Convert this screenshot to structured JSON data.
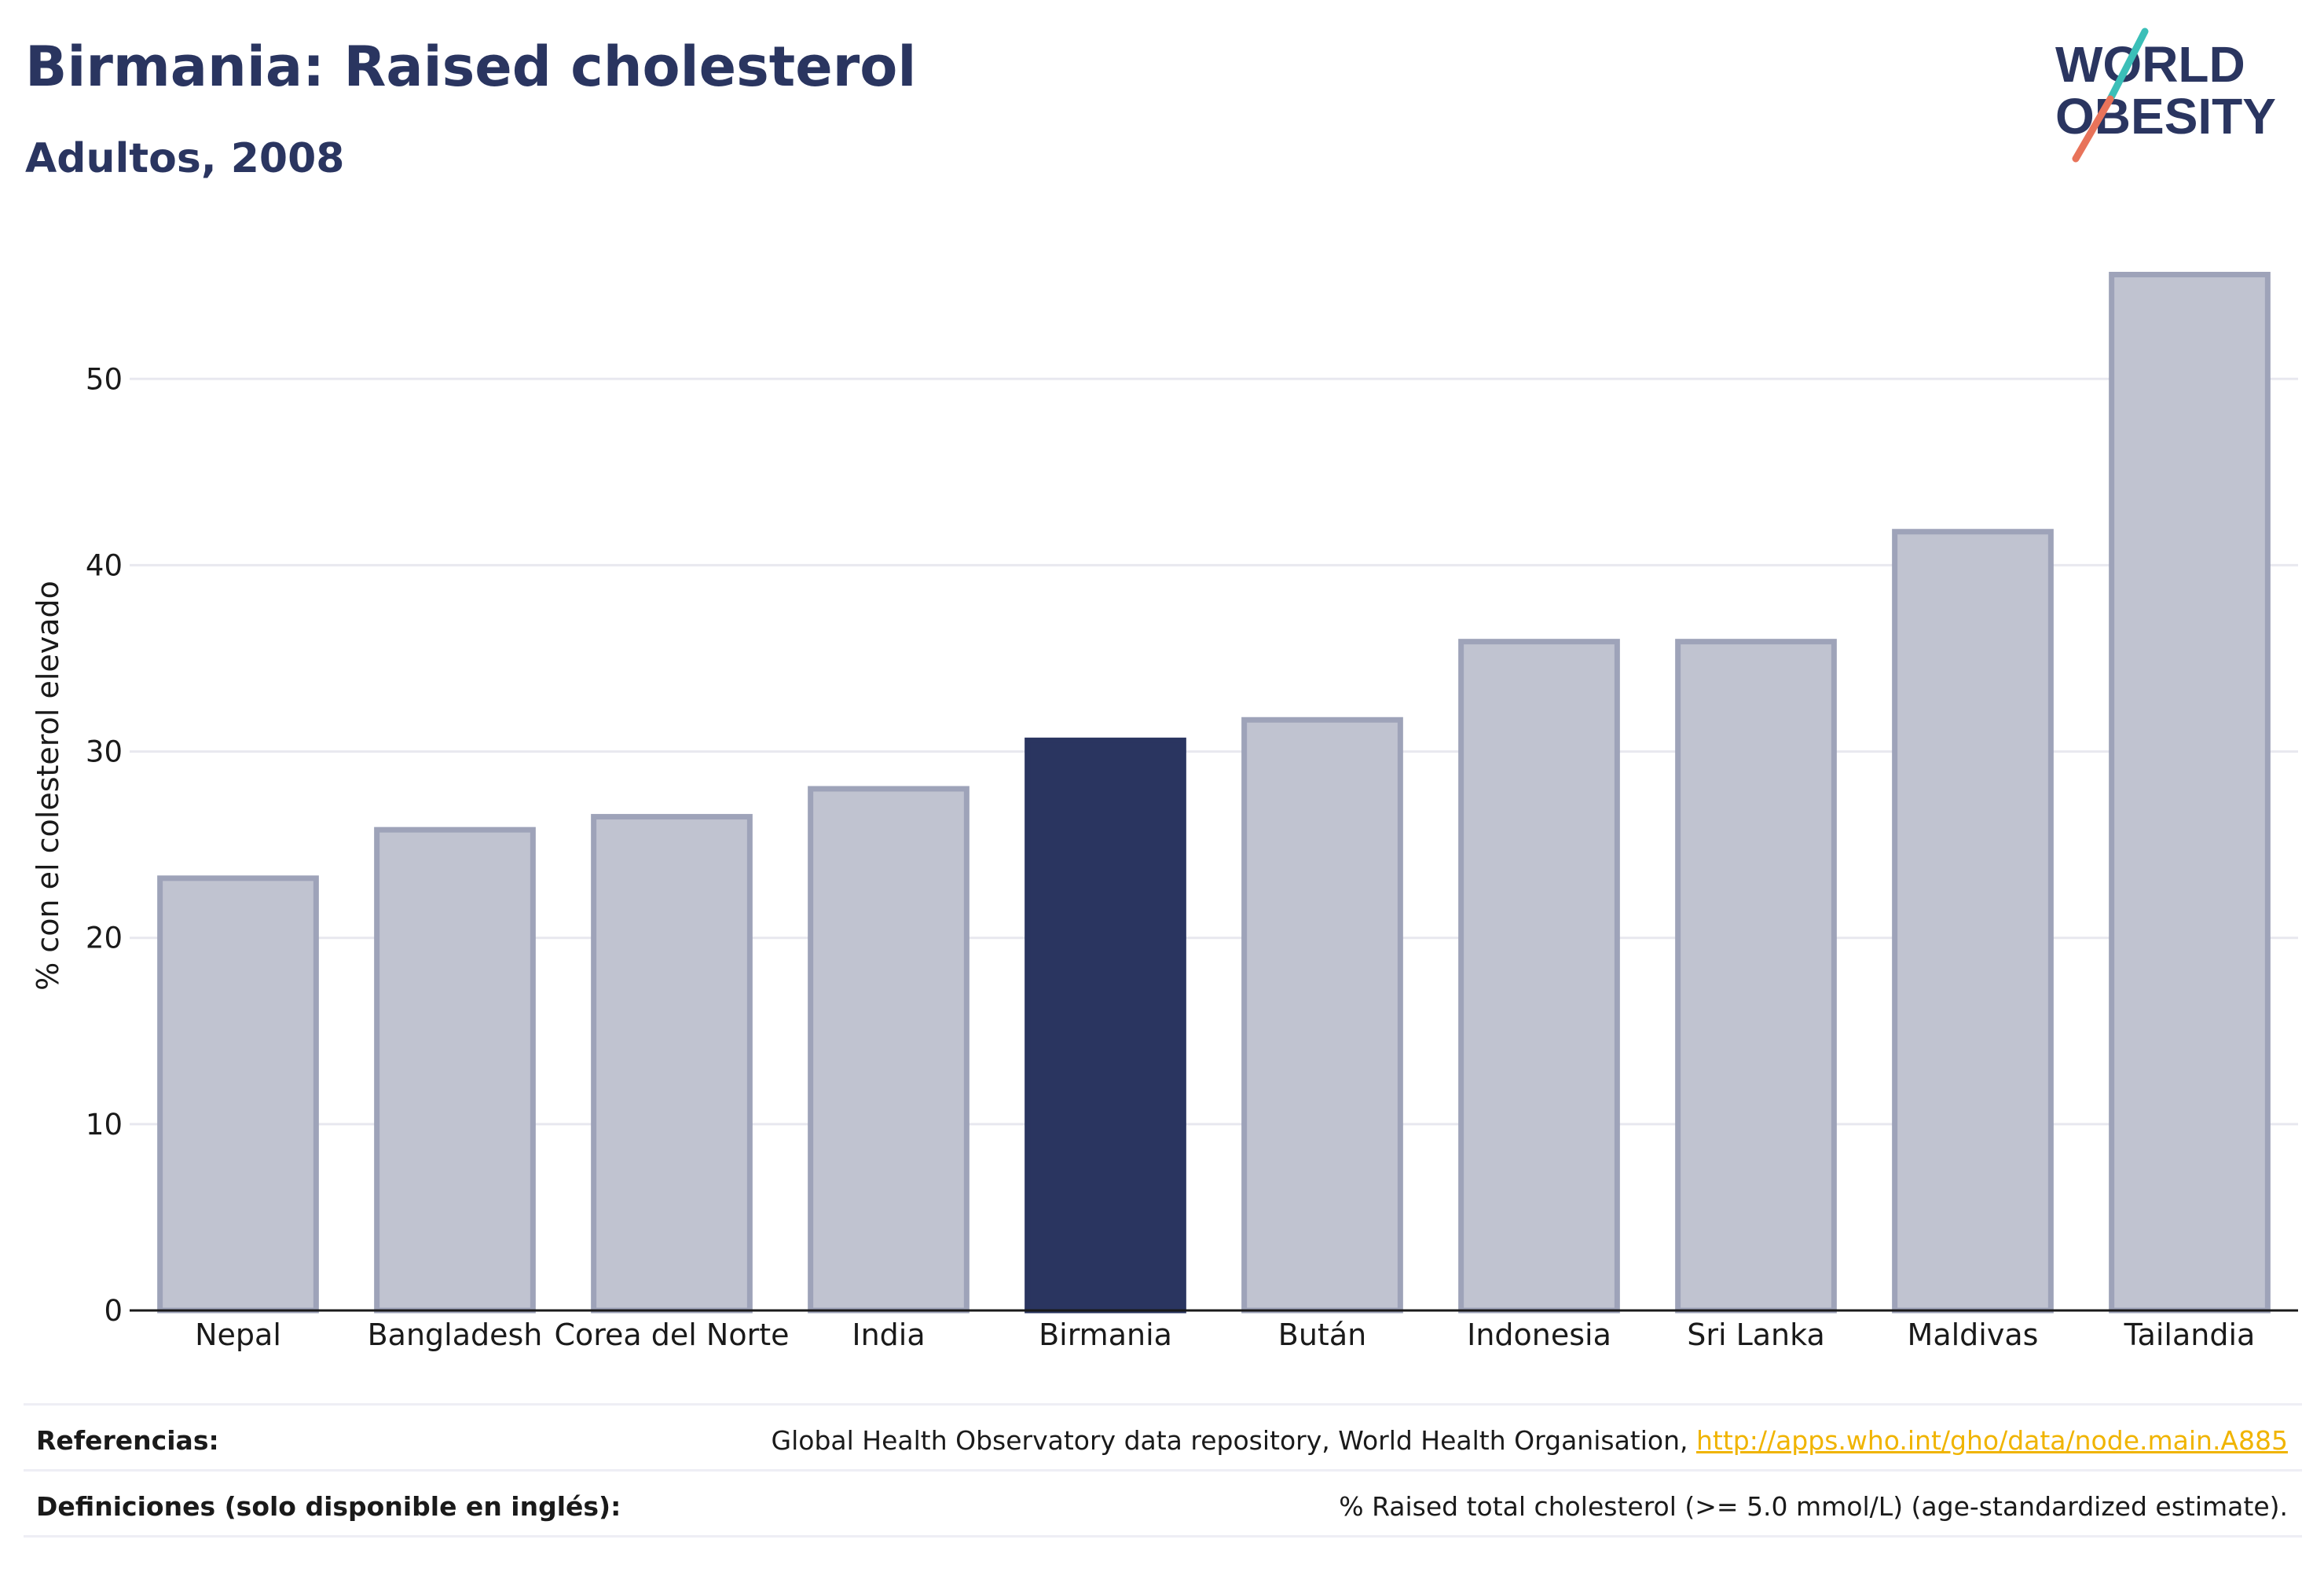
{
  "header": {
    "title": "Birmania: Raised cholesterol",
    "subtitle": "Adultos, 2008"
  },
  "logo": {
    "line1": "WORLD",
    "line2": "OBESITY",
    "text_color": "#2a3560",
    "slash_top_color": "#3bbfb8",
    "slash_bottom_color": "#e8735a"
  },
  "chart_data": {
    "type": "bar",
    "title": "Birmania: Raised cholesterol",
    "subtitle": "Adultos, 2008",
    "xlabel": "",
    "ylabel": "% con el colesterol elevado",
    "ylim": [
      0,
      56
    ],
    "yticks": [
      0,
      10,
      20,
      30,
      40,
      50
    ],
    "grid": true,
    "categories": [
      "Nepal",
      "Bangladesh",
      "Corea del Norte",
      "India",
      "Birmania",
      "Bután",
      "Indonesia",
      "Sri Lanka",
      "Maldivas",
      "Tailandia"
    ],
    "values": [
      23.2,
      25.8,
      26.5,
      28.0,
      30.6,
      31.7,
      35.9,
      35.9,
      41.8,
      55.6
    ],
    "highlight": "Birmania",
    "colors": {
      "bar": "#c0c3d0",
      "bar_border": "#9ea3b9",
      "highlight": "#2a3560",
      "grid": "#e8e8ef",
      "axis": "#1a1a1a"
    }
  },
  "footer": {
    "references_label": "Referencias:",
    "references_text": "Global Health Observatory data repository, World Health Organisation, ",
    "references_link": "http://apps.who.int/gho/data/node.main.A885",
    "link_color": "#f0b400",
    "definitions_label": "Definiciones (solo disponible en inglés):",
    "definitions_text": "% Raised total cholesterol (>= 5.0 mmol/L) (age-standardized estimate)."
  }
}
